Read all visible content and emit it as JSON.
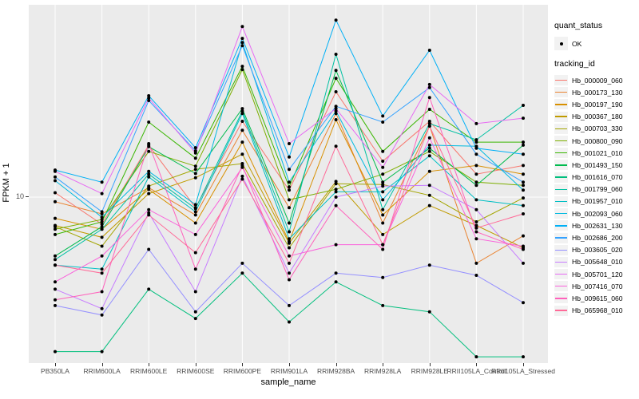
{
  "figure": {
    "y_tick_label": "10",
    "panel_bg": "#EBEBEB",
    "grid_color": "#FFFFFF",
    "point_color": "#000000",
    "axis_text_color": "#4D4D4D"
  },
  "legend": {
    "quant_status_title": "quant_status",
    "quant_ok_label": "OK",
    "tracking_id_title": "tracking_id"
  },
  "chart_data": {
    "type": "line",
    "title": "",
    "xlabel": "sample_name",
    "ylabel": "FPKM + 1",
    "yscale": "log10",
    "ylim": [
      1.5,
      80
    ],
    "y_major_gridline_at": 10,
    "grid": "vertical-gridline-per-category and horizontal gridline at y=10",
    "legend_position": "right",
    "marker": "black point at every vertex",
    "x": [
      "PB350LA",
      "RRIM600LA",
      "RRIM600LE",
      "RRIM600SE",
      "RRIM600PE",
      "RRIM901LA",
      "RRIM928BA",
      "RRIM928LA",
      "RRIM928LE",
      "RRII105LA_Control",
      "RRII105LA_Stressed"
    ],
    "series": [
      {
        "name": "Hb_000009_060",
        "color": "#F8766D",
        "values": [
          10.5,
          7.4,
          17.8,
          8.9,
          23.2,
          10.8,
          32.2,
          14.9,
          23.2,
          12.9,
          14.2
        ]
      },
      {
        "name": "Hb_000173_130",
        "color": "#EA8331",
        "values": [
          9.5,
          8.3,
          11.1,
          8.2,
          21.0,
          8.9,
          25.3,
          7.5,
          22.0,
          4.8,
          6.5
        ]
      },
      {
        "name": "Hb_000197_190",
        "color": "#D89000",
        "values": [
          7.9,
          7.0,
          10.9,
          7.5,
          18.4,
          6.1,
          23.6,
          8.2,
          13.3,
          14.2,
          12.9
        ]
      },
      {
        "name": "Hb_000367_180",
        "color": "#C09B00",
        "values": [
          7.3,
          6.4,
          10.4,
          12.4,
          16.1,
          6.0,
          11.9,
          6.6,
          9.1,
          7.3,
          5.7
        ]
      },
      {
        "name": "Hb_000703_330",
        "color": "#A3A500",
        "values": [
          7.2,
          5.8,
          11.3,
          13.6,
          14.5,
          5.7,
          11.6,
          11.5,
          10.2,
          7.6,
          9.9
        ]
      },
      {
        "name": "Hb_000800_090",
        "color": "#7CAE00",
        "values": [
          7.0,
          7.8,
          16.6,
          14.1,
          41.2,
          9.7,
          10.9,
          12.9,
          16.6,
          11.8,
          11.4
        ]
      },
      {
        "name": "Hb_001021_010",
        "color": "#39B600",
        "values": [
          6.6,
          7.6,
          23.0,
          15.4,
          42.7,
          11.2,
          37.4,
          16.6,
          26.5,
          18.4,
          18.4
        ]
      },
      {
        "name": "Hb_001493_150",
        "color": "#00BB4E",
        "values": [
          5.2,
          7.2,
          17.5,
          13.0,
          26.7,
          7.5,
          40.8,
          11.8,
          17.2,
          11.4,
          17.8
        ]
      },
      {
        "name": "Hb_001616_070",
        "color": "#00BF7D",
        "values": [
          1.8,
          1.8,
          3.6,
          2.6,
          4.3,
          2.5,
          3.9,
          3.0,
          2.8,
          1.7,
          1.7
        ]
      },
      {
        "name": "Hb_001799_060",
        "color": "#00C1A3",
        "values": [
          5.0,
          7.0,
          12.9,
          8.8,
          26.0,
          6.8,
          48.8,
          8.7,
          22.6,
          18.9,
          27.7
        ]
      },
      {
        "name": "Hb_001957_010",
        "color": "#00BFC4",
        "values": [
          4.7,
          4.5,
          12.5,
          8.5,
          25.3,
          6.3,
          10.6,
          10.6,
          15.8,
          9.7,
          9.1
        ]
      },
      {
        "name": "Hb_002093_060",
        "color": "#00BAE0",
        "values": [
          12.0,
          8.0,
          13.3,
          9.2,
          55.6,
          11.8,
          26.0,
          9.7,
          17.8,
          17.6,
          10.8
        ]
      },
      {
        "name": "Hb_002631_130",
        "color": "#00B0F6",
        "values": [
          13.5,
          11.8,
          30.8,
          17.3,
          58.2,
          15.6,
          71.3,
          24.6,
          51.0,
          17.2,
          16.1
        ]
      },
      {
        "name": "Hb_002686_200",
        "color": "#35A2FF",
        "values": [
          12.5,
          8.5,
          29.2,
          16.7,
          53.7,
          13.6,
          27.4,
          23.0,
          33.7,
          16.1,
          11.8
        ]
      },
      {
        "name": "Hb_003605_020",
        "color": "#9590FF",
        "values": [
          3.0,
          2.7,
          5.6,
          2.8,
          4.8,
          3.0,
          4.3,
          4.1,
          4.7,
          4.2,
          3.1
        ]
      },
      {
        "name": "Hb_005648_010",
        "color": "#C77CFF",
        "values": [
          3.6,
          2.9,
          8.4,
          3.5,
          12.6,
          4.3,
          10.0,
          11.3,
          11.4,
          8.7,
          4.8
        ]
      },
      {
        "name": "Hb_005701_120",
        "color": "#E76BF3",
        "values": [
          13.3,
          10.4,
          30.0,
          16.3,
          66.4,
          18.1,
          26.7,
          13.9,
          34.9,
          22.6,
          24.0
        ]
      },
      {
        "name": "Hb_007416_070",
        "color": "#FA62DB",
        "values": [
          3.9,
          5.2,
          8.7,
          6.6,
          13.9,
          5.2,
          5.9,
          5.9,
          19.3,
          6.3,
          5.8
        ]
      },
      {
        "name": "Hb_009615_060",
        "color": "#FF62BC",
        "values": [
          3.2,
          3.5,
          18.1,
          4.5,
          14.2,
          4.0,
          9.1,
          5.6,
          30.2,
          6.8,
          5.6
        ]
      },
      {
        "name": "Hb_065968_010",
        "color": "#FF6A98",
        "values": [
          4.7,
          4.3,
          8.2,
          5.4,
          12.2,
          4.8,
          17.6,
          5.9,
          22.0,
          7.1,
          8.3
        ]
      }
    ]
  }
}
